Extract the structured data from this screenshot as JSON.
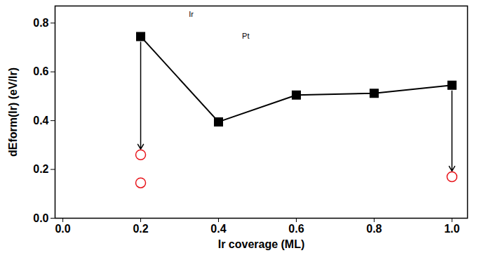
{
  "chart_data": {
    "type": "line",
    "x_label": "Ir coverage (ML)",
    "y_label": "dEform(Ir) (eV/Ir)",
    "xlim": [
      -0.02,
      1.04
    ],
    "ylim": [
      0,
      0.87
    ],
    "xticks": [
      {
        "value": 0,
        "label": "0.0"
      },
      {
        "value": 0.2,
        "label": "0.2"
      },
      {
        "value": 0.4,
        "label": "0.4"
      },
      {
        "value": 0.6,
        "label": "0.6"
      },
      {
        "value": 0.8,
        "label": "0.8"
      },
      {
        "value": 1,
        "label": "1.0"
      }
    ],
    "yticks": [
      {
        "value": 0,
        "label": "0.0"
      },
      {
        "value": 0.2,
        "label": "0.2"
      },
      {
        "value": 0.4,
        "label": "0.4"
      },
      {
        "value": 0.6,
        "label": "0.6"
      },
      {
        "value": 0.8,
        "label": "0.8"
      }
    ],
    "grid": false,
    "annotations": [
      "Ir",
      "Pt"
    ],
    "series": [
      {
        "type": "line",
        "color": "#000000",
        "marker": "square",
        "line_style": "solid",
        "x": [
          0.2,
          0.4,
          0.6,
          0.8,
          1.0
        ],
        "values": [
          0.745,
          0.395,
          0.505,
          0.512,
          0.545
        ]
      },
      {
        "type": "scatter",
        "color": "#e8141b",
        "marker": "circle",
        "x": [
          0.2,
          0.2,
          1.0
        ],
        "values": [
          0.26,
          0.145,
          0.17
        ]
      }
    ]
  }
}
